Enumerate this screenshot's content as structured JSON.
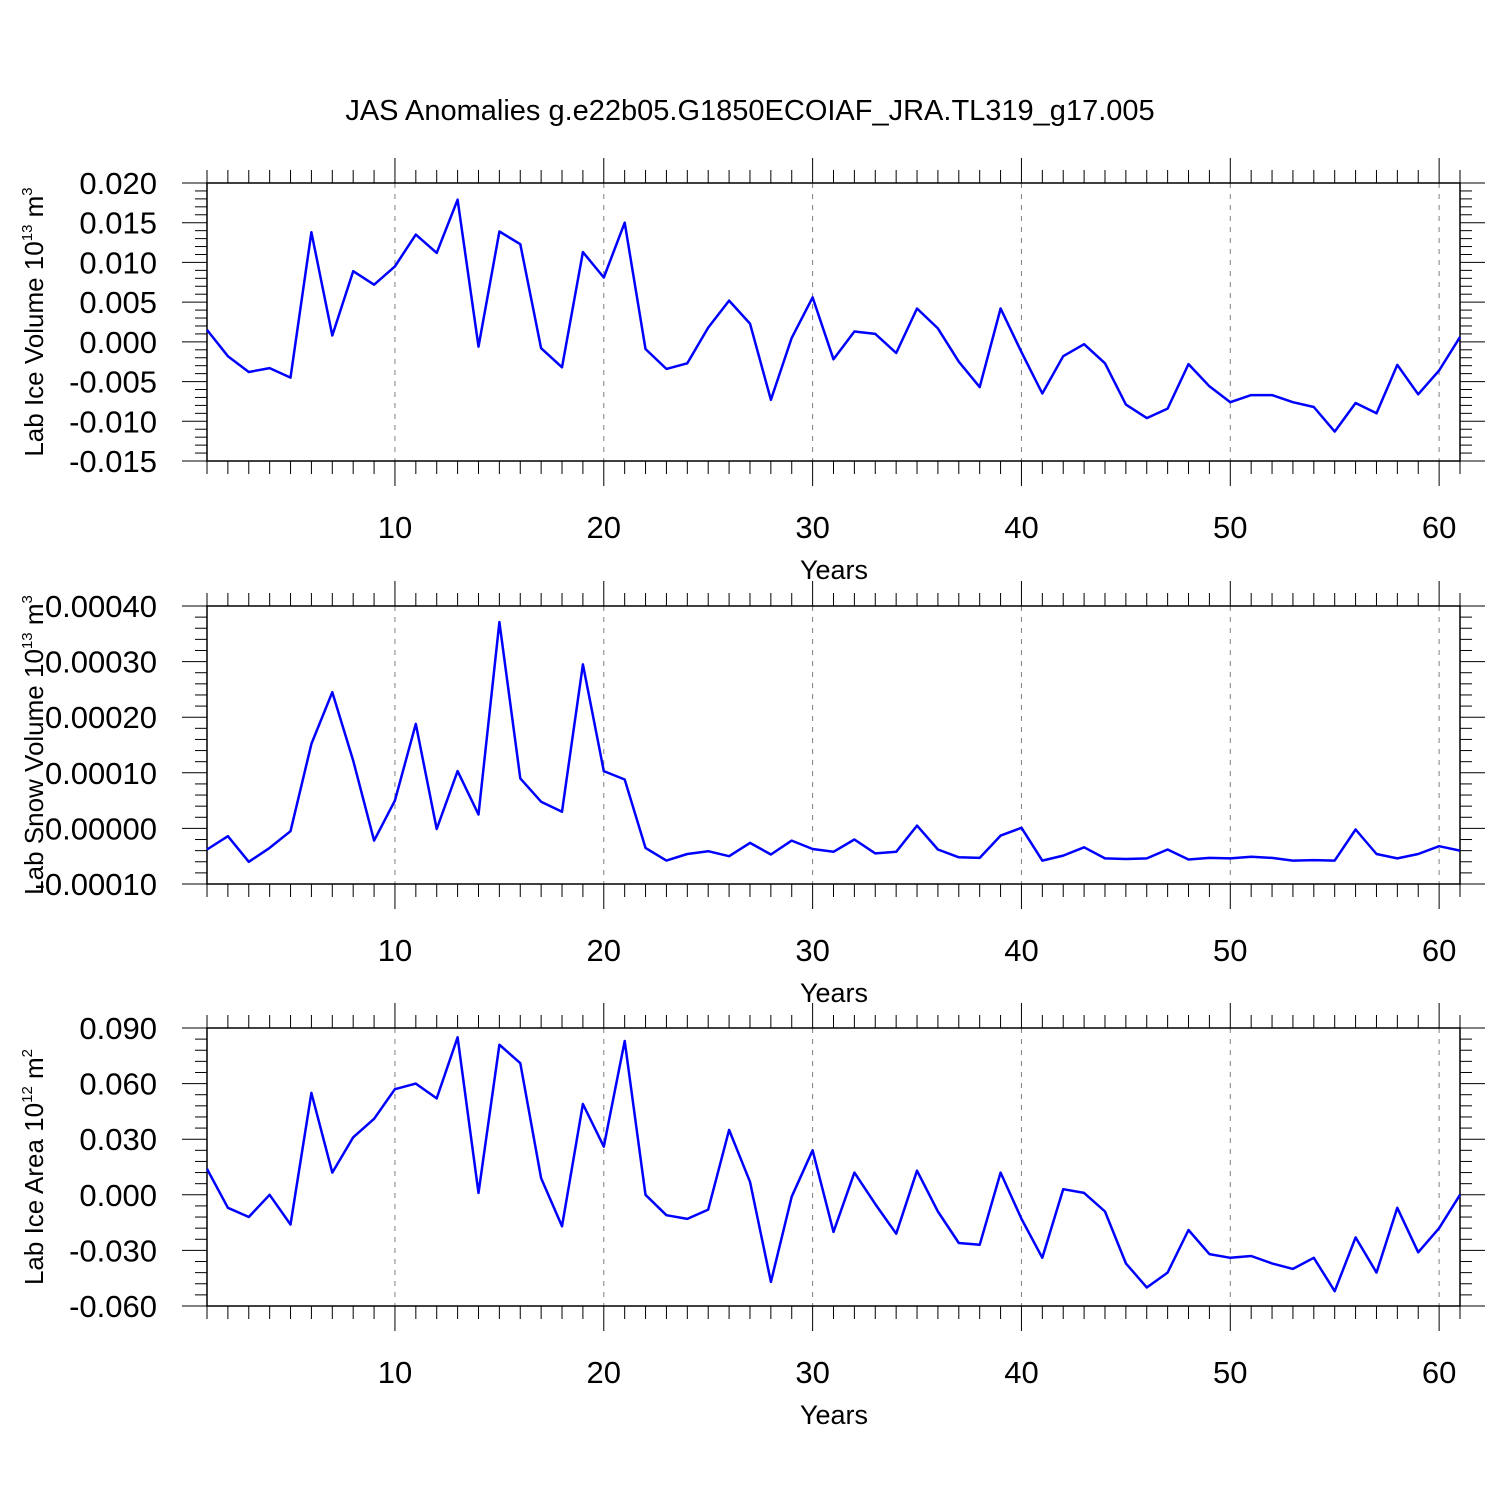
{
  "title": "JAS Anomalies g.e22b05.G1850ECOIAF_JRA.TL319_g17.005",
  "colors": {
    "line": "#0000ff",
    "axis": "#000000",
    "grid": "#808080"
  },
  "chart_data": [
    {
      "type": "line",
      "title": "JAS Anomalies g.e22b05.G1850ECOIAF_JRA.TL319_g17.005",
      "xlabel": "Years",
      "ylabel": {
        "text": "Lab Ice Volume 10",
        "sup": "13",
        "unit": " m",
        "unit_sup": "3"
      },
      "xlim": [
        1,
        61
      ],
      "ylim": [
        -0.015,
        0.02
      ],
      "xticks": [
        10,
        20,
        30,
        40,
        50,
        60
      ],
      "yticks": [
        -0.015,
        -0.01,
        -0.005,
        0.0,
        0.005,
        0.01,
        0.015,
        0.02
      ],
      "ytick_labels": [
        "-0.015",
        "-0.010",
        "-0.005",
        "0.000",
        "0.005",
        "0.010",
        "0.015",
        "0.020"
      ],
      "grid": "vertical dashed at x ticks",
      "x": [
        1,
        2,
        3,
        4,
        5,
        6,
        7,
        8,
        9,
        10,
        11,
        12,
        13,
        14,
        15,
        16,
        17,
        18,
        19,
        20,
        21,
        22,
        23,
        24,
        25,
        26,
        27,
        28,
        29,
        30,
        31,
        32,
        33,
        34,
        35,
        36,
        37,
        38,
        39,
        40,
        41,
        42,
        43,
        44,
        45,
        46,
        47,
        48,
        49,
        50,
        51,
        52,
        53,
        54,
        55,
        56,
        57,
        58,
        59,
        60,
        61
      ],
      "values": [
        0.0015,
        -0.0018,
        -0.0038,
        -0.0033,
        -0.0045,
        0.0138,
        0.0008,
        0.0089,
        0.0072,
        0.0095,
        0.0135,
        0.0112,
        0.0179,
        -0.0006,
        0.0139,
        0.0123,
        -0.0008,
        -0.0032,
        0.0113,
        0.0081,
        0.015,
        -0.0009,
        -0.0034,
        -0.0027,
        0.0018,
        0.0052,
        0.0023,
        -0.0073,
        0.0005,
        0.0056,
        -0.0022,
        0.0013,
        0.001,
        -0.0014,
        0.0042,
        0.0017,
        -0.0025,
        -0.0057,
        0.0042,
        -0.0013,
        -0.0065,
        -0.0018,
        -0.0003,
        -0.0027,
        -0.0079,
        -0.0096,
        -0.0084,
        -0.0028,
        -0.0056,
        -0.0076,
        -0.0067,
        -0.0067,
        -0.0076,
        -0.0082,
        -0.0113,
        -0.0077,
        -0.009,
        -0.0029,
        -0.0066,
        -0.0036,
        0.0006
      ]
    },
    {
      "type": "line",
      "xlabel": "Years",
      "ylabel": {
        "text": "Lab Snow Volume 10",
        "sup": "13",
        "unit": " m",
        "unit_sup": "3"
      },
      "xlim": [
        1,
        61
      ],
      "ylim": [
        -0.0001,
        0.0004
      ],
      "xticks": [
        10,
        20,
        30,
        40,
        50,
        60
      ],
      "yticks": [
        -0.0001,
        0.0,
        0.0001,
        0.0002,
        0.0003,
        0.0004
      ],
      "ytick_labels": [
        "-0.00010",
        "0.00000",
        "0.00010",
        "0.00020",
        "0.00030",
        "0.00040"
      ],
      "grid": "vertical dashed at x ticks",
      "x": [
        1,
        2,
        3,
        4,
        5,
        6,
        7,
        8,
        9,
        10,
        11,
        12,
        13,
        14,
        15,
        16,
        17,
        18,
        19,
        20,
        21,
        22,
        23,
        24,
        25,
        26,
        27,
        28,
        29,
        30,
        31,
        32,
        33,
        34,
        35,
        36,
        37,
        38,
        39,
        40,
        41,
        42,
        43,
        44,
        45,
        46,
        47,
        48,
        49,
        50,
        51,
        52,
        53,
        54,
        55,
        56,
        57,
        58,
        59,
        60,
        61
      ],
      "values": [
        -3.8e-05,
        -1.4e-05,
        -6e-05,
        -3.5e-05,
        -5e-06,
        0.000152,
        0.000245,
        0.000122,
        -2.2e-05,
        5e-05,
        0.000188,
        -1e-06,
        0.000103,
        2.5e-05,
        0.000371,
        9e-05,
        4.8e-05,
        3e-05,
        0.000295,
        0.000103,
        8.8e-05,
        -3.5e-05,
        -5.8e-05,
        -4.6e-05,
        -4.1e-05,
        -5e-05,
        -2.6e-05,
        -4.7e-05,
        -2.2e-05,
        -3.7e-05,
        -4.2e-05,
        -2e-05,
        -4.5e-05,
        -4.2e-05,
        5e-06,
        -3.8e-05,
        -5.2e-05,
        -5.3e-05,
        -1.3e-05,
        1e-06,
        -5.8e-05,
        -4.9e-05,
        -3.4e-05,
        -5.4e-05,
        -5.5e-05,
        -5.4e-05,
        -3.8e-05,
        -5.6e-05,
        -5.3e-05,
        -5.4e-05,
        -5.1e-05,
        -5.3e-05,
        -5.8e-05,
        -5.7e-05,
        -5.8e-05,
        -2e-06,
        -4.6e-05,
        -5.4e-05,
        -4.6e-05,
        -3.2e-05,
        -4e-05
      ]
    },
    {
      "type": "line",
      "xlabel": "Years",
      "ylabel": {
        "text": "Lab Ice Area 10",
        "sup": "12",
        "unit": " m",
        "unit_sup": "2"
      },
      "xlim": [
        1,
        61
      ],
      "ylim": [
        -0.06,
        0.09
      ],
      "xticks": [
        10,
        20,
        30,
        40,
        50,
        60
      ],
      "yticks": [
        -0.06,
        -0.03,
        0.0,
        0.03,
        0.06,
        0.09
      ],
      "ytick_labels": [
        "-0.060",
        "-0.030",
        "0.000",
        "0.030",
        "0.060",
        "0.090"
      ],
      "grid": "vertical dashed at x ticks",
      "x": [
        1,
        2,
        3,
        4,
        5,
        6,
        7,
        8,
        9,
        10,
        11,
        12,
        13,
        14,
        15,
        16,
        17,
        18,
        19,
        20,
        21,
        22,
        23,
        24,
        25,
        26,
        27,
        28,
        29,
        30,
        31,
        32,
        33,
        34,
        35,
        36,
        37,
        38,
        39,
        40,
        41,
        42,
        43,
        44,
        45,
        46,
        47,
        48,
        49,
        50,
        51,
        52,
        53,
        54,
        55,
        56,
        57,
        58,
        59,
        60,
        61
      ],
      "values": [
        0.014,
        -0.007,
        -0.012,
        0.0,
        -0.016,
        0.055,
        0.012,
        0.031,
        0.041,
        0.057,
        0.06,
        0.052,
        0.085,
        0.001,
        0.081,
        0.071,
        0.009,
        -0.017,
        0.049,
        0.026,
        0.083,
        0.0,
        -0.011,
        -0.013,
        -0.008,
        0.035,
        0.007,
        -0.047,
        -0.001,
        0.024,
        -0.02,
        0.012,
        -0.005,
        -0.021,
        0.013,
        -0.009,
        -0.026,
        -0.027,
        0.012,
        -0.013,
        -0.034,
        0.003,
        0.001,
        -0.009,
        -0.037,
        -0.05,
        -0.042,
        -0.019,
        -0.032,
        -0.034,
        -0.033,
        -0.037,
        -0.04,
        -0.034,
        -0.052,
        -0.023,
        -0.042,
        -0.007,
        -0.031,
        -0.018,
        0.0
      ]
    }
  ]
}
